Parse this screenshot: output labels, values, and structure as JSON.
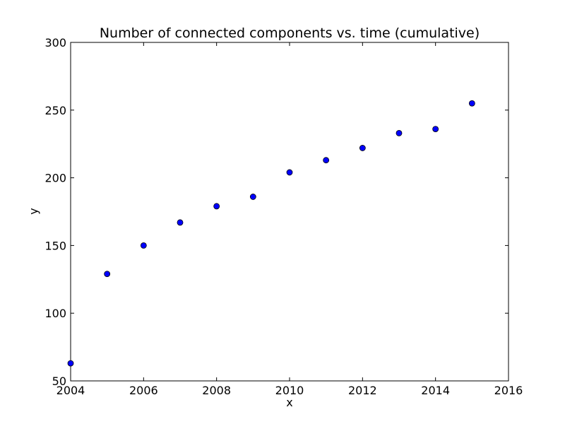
{
  "chart_data": {
    "type": "scatter",
    "title": "Number of connected components vs. time (cumulative)",
    "xlabel": "x",
    "ylabel": "y",
    "xlim": [
      2004,
      2016
    ],
    "ylim": [
      50,
      300
    ],
    "xticks": [
      "2004",
      "2006",
      "2008",
      "2010",
      "2012",
      "2014",
      "2016"
    ],
    "yticks": [
      "50",
      "100",
      "150",
      "200",
      "250",
      "300"
    ],
    "grid": false,
    "marker_color": "#0000ff",
    "marker_edge_color": "#000000",
    "series": [
      {
        "x": [
          2004,
          2005,
          2006,
          2007,
          2008,
          2009,
          2010,
          2011,
          2012,
          2013,
          2014,
          2015
        ],
        "y": [
          63,
          129,
          150,
          167,
          179,
          186,
          204,
          213,
          222,
          233,
          236,
          255
        ]
      }
    ]
  }
}
